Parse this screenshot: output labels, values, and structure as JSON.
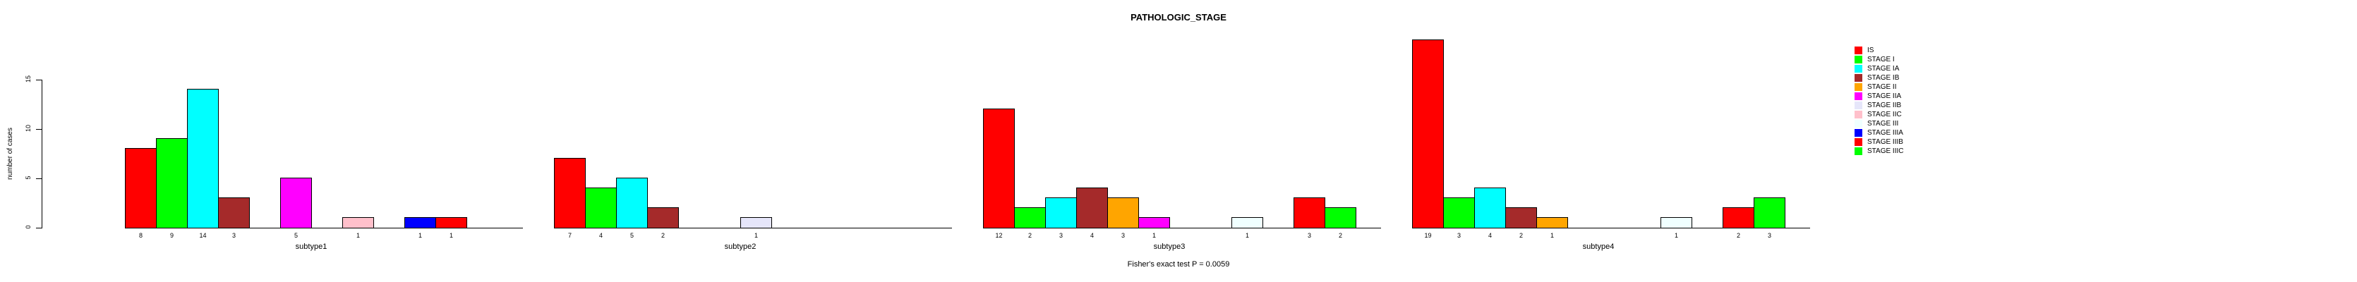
{
  "chart_data": {
    "type": "bar",
    "title": "PATHOLOGIC_STAGE",
    "annotation": "Fisher's exact test P = 0.0059",
    "xlabel": "",
    "ylabel": "number of cases",
    "ylim": [
      0,
      15
    ],
    "yticks": [
      0,
      5,
      10,
      15
    ],
    "grid": false,
    "legend_position": "right",
    "categories": [
      "subtype1",
      "subtype2",
      "subtype3",
      "subtype4"
    ],
    "series": [
      {
        "name": "IS",
        "color": "#FF0000",
        "values": [
          8,
          7,
          12,
          19
        ]
      },
      {
        "name": "STAGE I",
        "color": "#00FF00",
        "values": [
          9,
          4,
          2,
          3
        ]
      },
      {
        "name": "STAGE IA",
        "color": "#00FFFF",
        "values": [
          14,
          5,
          3,
          4
        ]
      },
      {
        "name": "STAGE IB",
        "color": "#A52A2A",
        "values": [
          3,
          2,
          4,
          2
        ]
      },
      {
        "name": "STAGE II",
        "color": "#FFA500",
        "values": [
          0,
          0,
          3,
          1
        ]
      },
      {
        "name": "STAGE IIA",
        "color": "#FF00FF",
        "values": [
          5,
          0,
          1,
          0
        ]
      },
      {
        "name": "STAGE IIB",
        "color": "#E6E6FA",
        "values": [
          0,
          1,
          0,
          0
        ]
      },
      {
        "name": "STAGE IIC",
        "color": "#FFC0CB",
        "values": [
          1,
          0,
          0,
          0
        ]
      },
      {
        "name": "STAGE III",
        "color": "#F0FFFF",
        "values": [
          0,
          0,
          1,
          1
        ]
      },
      {
        "name": "STAGE IIIA",
        "color": "#0000FF",
        "values": [
          1,
          0,
          0,
          0
        ]
      },
      {
        "name": "STAGE IIIB",
        "color": "#FF0000",
        "values": [
          1,
          0,
          3,
          2
        ]
      },
      {
        "name": "STAGE IIIC",
        "color": "#00FF00",
        "values": [
          0,
          0,
          2,
          3
        ]
      }
    ]
  }
}
